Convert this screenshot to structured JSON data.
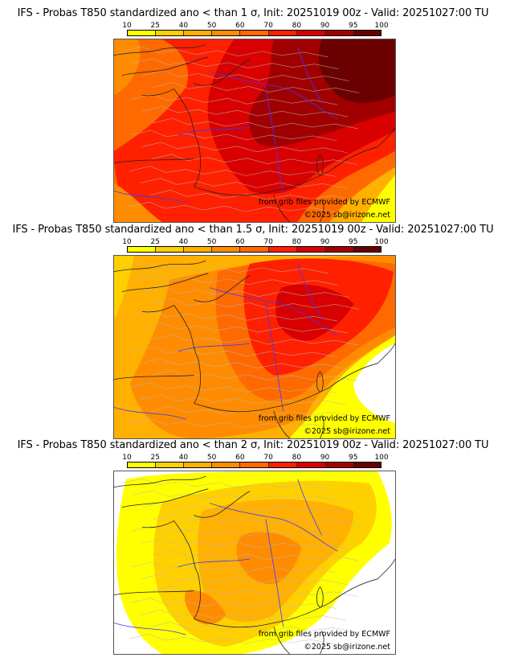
{
  "colorbar": {
    "ticks": [
      "10",
      "25",
      "40",
      "50",
      "60",
      "70",
      "80",
      "90",
      "95",
      "100"
    ],
    "colors": [
      "#ffff00",
      "#ffd000",
      "#ffb000",
      "#ff8c00",
      "#ff6a00",
      "#ff2000",
      "#d80000",
      "#a00000",
      "#6a0000"
    ]
  },
  "panels": [
    {
      "title": "IFS - Probas T850  standardized ano < than 1 σ, Init: 20251019 00z - Valid: 20251027:00 TU",
      "sigma": "1",
      "source_credit": "from grib files provided by ECMWF",
      "copyright": "©2025 sb@irizone.net"
    },
    {
      "title": "IFS - Probas T850  standardized ano < than 1.5 σ, Init: 20251019 00z - Valid: 20251027:00 TU",
      "sigma": "1.5",
      "source_credit": "from grib files provided by ECMWF",
      "copyright": "©2025 sb@irizone.net"
    },
    {
      "title": "IFS - Probas T850  standardized ano < than 2 σ, Init: 20251019 00z - Valid: 20251027:00 TU",
      "sigma": "2",
      "source_credit": "from grib files provided by ECMWF",
      "copyright": "©2025 sb@irizone.net"
    }
  ]
}
